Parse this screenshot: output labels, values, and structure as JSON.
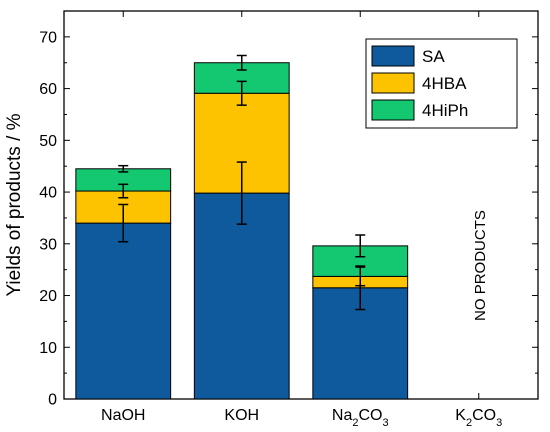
{
  "chart_data": {
    "type": "bar",
    "stacked": true,
    "title": "",
    "xlabel": "",
    "ylabel": "Yields of products / %",
    "ylim": [
      0,
      75
    ],
    "yticks": [
      0,
      10,
      20,
      30,
      40,
      50,
      60,
      70
    ],
    "grid": false,
    "legend_position": "top-right",
    "categories": [
      {
        "text": "NaOH",
        "sub": ""
      },
      {
        "text": "KOH",
        "sub": ""
      },
      {
        "text": "Na",
        "sub": "2",
        "tail": "CO",
        "sub2": "3"
      },
      {
        "text": "K",
        "sub": "2",
        "tail": "CO",
        "sub2": "3"
      }
    ],
    "series": [
      {
        "name": "SA",
        "color": "#0e5a9c",
        "values": [
          34.0,
          39.8,
          21.5,
          0
        ],
        "errors": [
          3.6,
          6.0,
          4.2,
          0
        ]
      },
      {
        "name": "4HBA",
        "color": "#fdc300",
        "values": [
          6.2,
          19.3,
          2.2,
          0
        ],
        "errors": [
          1.3,
          2.3,
          1.8,
          0
        ]
      },
      {
        "name": "4HiPh",
        "color": "#13c870",
        "values": [
          4.3,
          5.9,
          5.9,
          0
        ],
        "errors": [
          0.6,
          1.4,
          2.1,
          0
        ]
      }
    ],
    "annotations": [
      {
        "text": "NO PRODUCTS",
        "category": 3
      }
    ]
  }
}
